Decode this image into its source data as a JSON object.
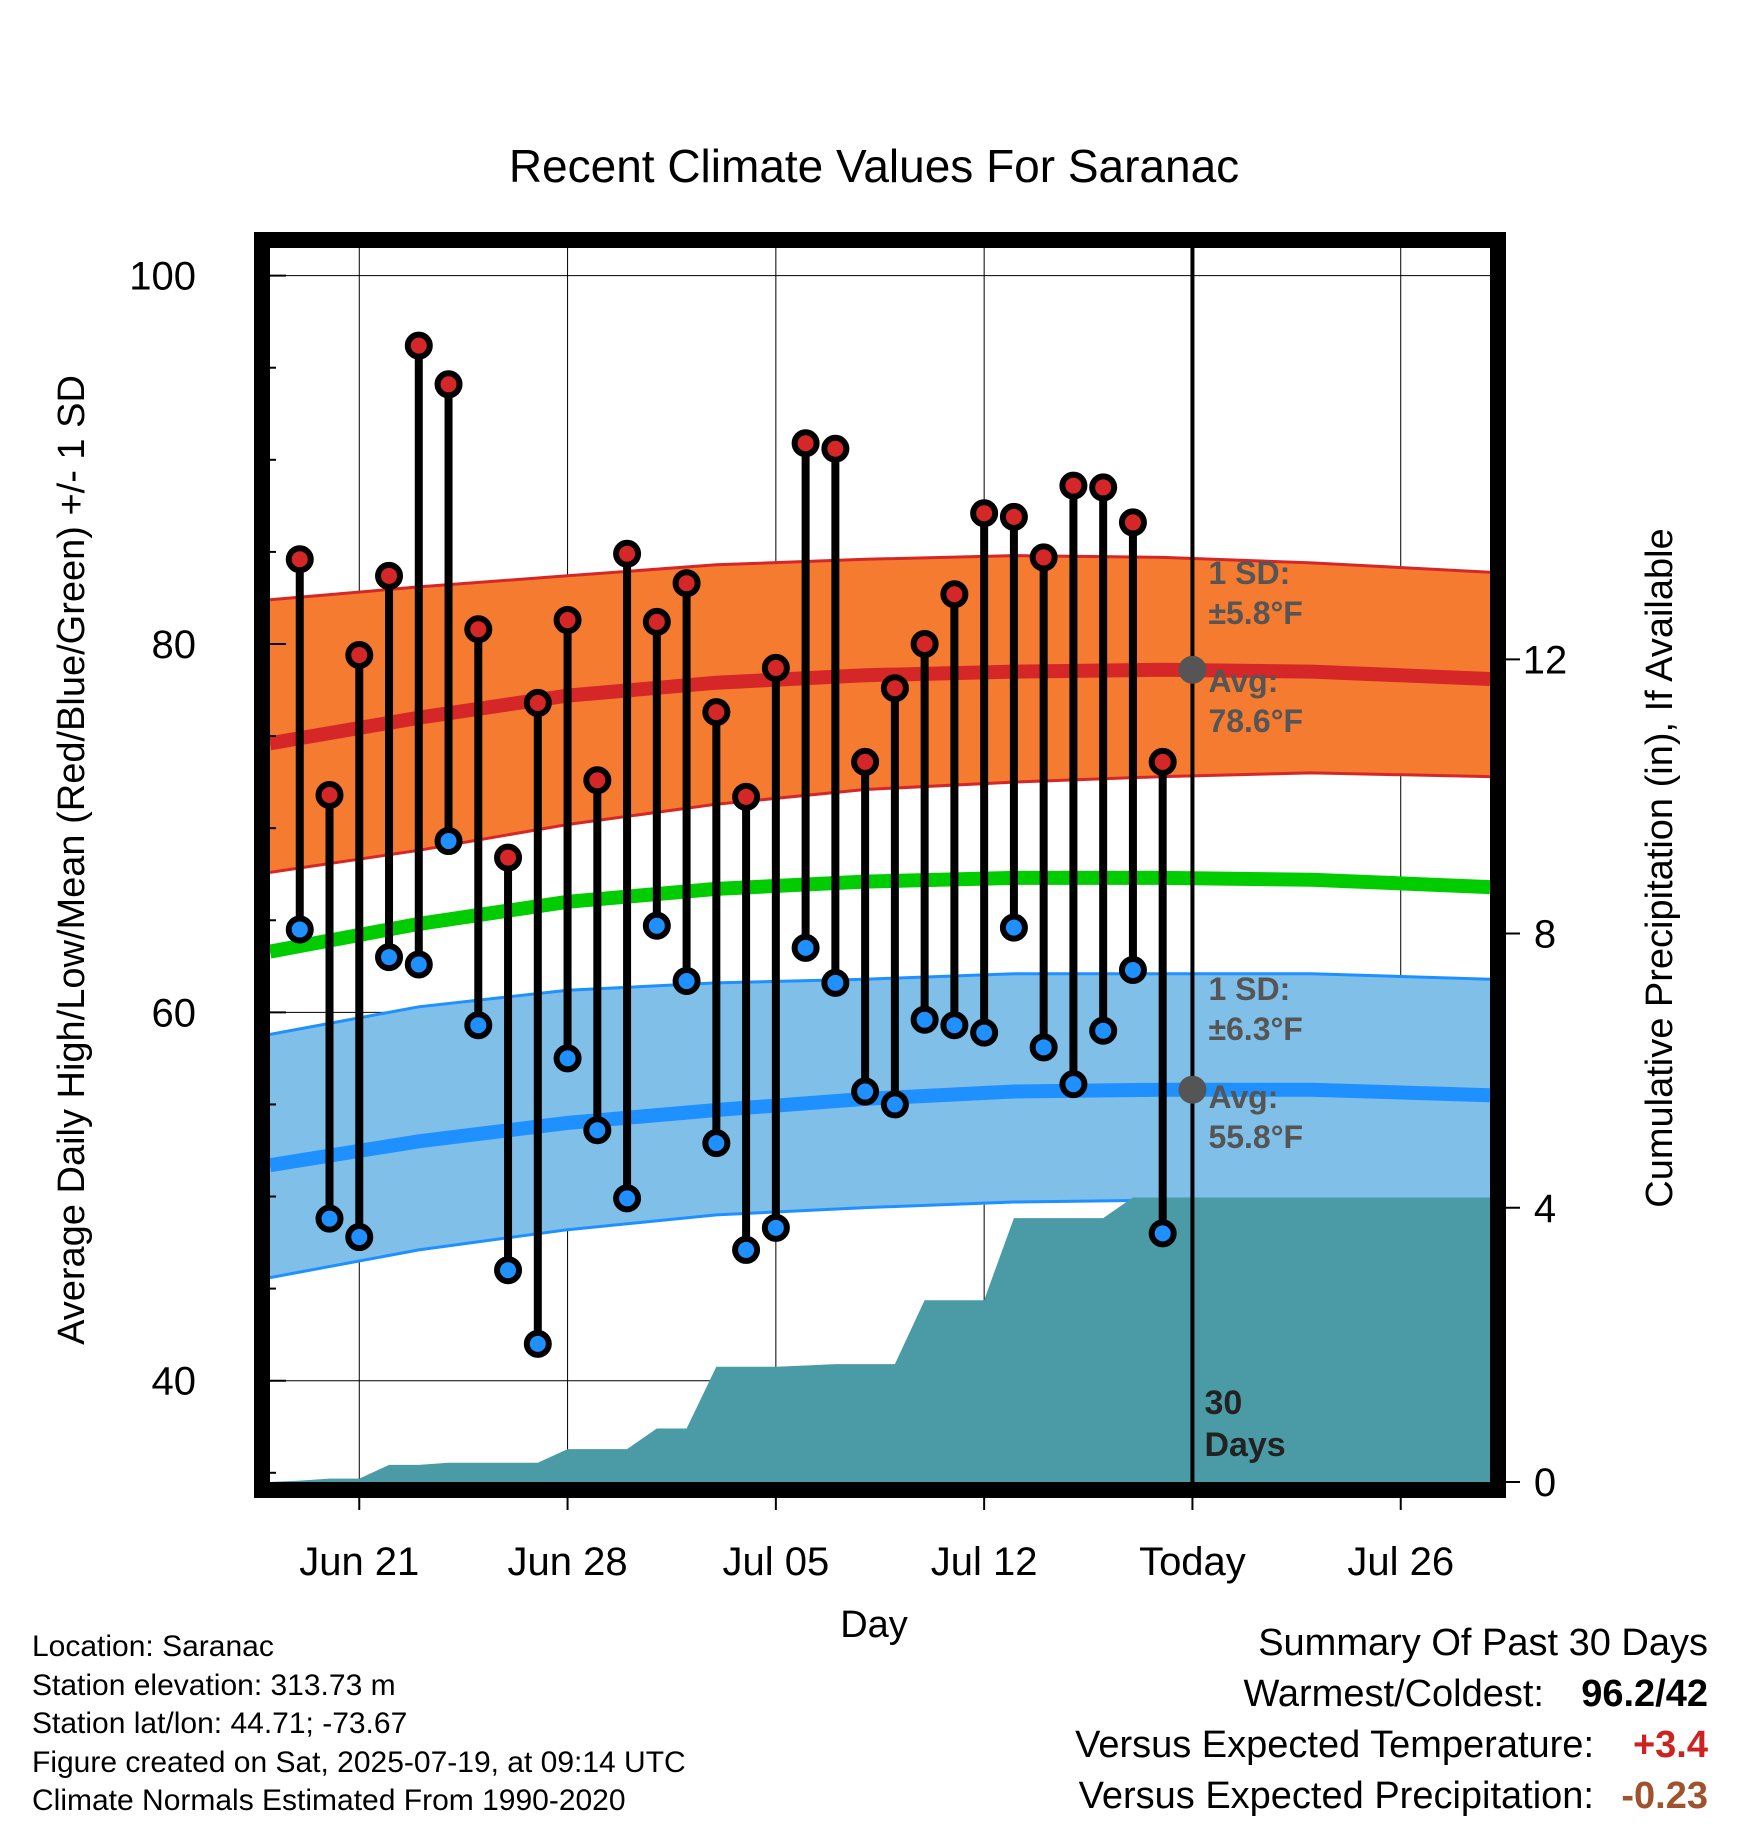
{
  "chart_data": {
    "type": "line",
    "title": "Recent Climate Values For Saranac",
    "xlabel": "Day",
    "ylabel_left": "Average Daily High/Low/Mean (Red/Blue/Green) +/- 1 SD",
    "ylabel_right": "Cumulative Precipitation (in), If Available",
    "ylim_left": [
      34.5,
      101.5
    ],
    "ylim_right": [
      0,
      18
    ],
    "yticks_left": [
      "40",
      "60",
      "80",
      "100"
    ],
    "yticks_right": [
      "0",
      "4",
      "8",
      "12"
    ],
    "xlim": [
      "2025-06-18",
      "2025-07-29"
    ],
    "xticks": [
      {
        "date": "2025-06-21",
        "label": "Jun 21"
      },
      {
        "date": "2025-06-28",
        "label": "Jun 28"
      },
      {
        "date": "2025-07-05",
        "label": "Jul 05"
      },
      {
        "date": "2025-07-12",
        "label": "Jul 12"
      },
      {
        "date": "2025-07-19",
        "label": "Today"
      },
      {
        "date": "2025-07-26",
        "label": "Jul 26"
      }
    ],
    "grid": true,
    "today": "2025-07-19",
    "today_label": [
      "30",
      "Days"
    ],
    "observed": {
      "dates": [
        "2025-06-19",
        "2025-06-20",
        "2025-06-21",
        "2025-06-22",
        "2025-06-23",
        "2025-06-24",
        "2025-06-25",
        "2025-06-26",
        "2025-06-27",
        "2025-06-28",
        "2025-06-29",
        "2025-06-30",
        "2025-07-01",
        "2025-07-02",
        "2025-07-03",
        "2025-07-04",
        "2025-07-05",
        "2025-07-06",
        "2025-07-07",
        "2025-07-08",
        "2025-07-09",
        "2025-07-10",
        "2025-07-11",
        "2025-07-12",
        "2025-07-13",
        "2025-07-14",
        "2025-07-15",
        "2025-07-16",
        "2025-07-17",
        "2025-07-18"
      ],
      "high": [
        84.6,
        71.8,
        79.4,
        83.7,
        96.2,
        94.1,
        80.8,
        68.4,
        76.8,
        81.3,
        72.6,
        84.9,
        81.2,
        83.3,
        76.3,
        71.7,
        78.7,
        90.9,
        90.6,
        73.6,
        77.6,
        80.0,
        82.7,
        87.1,
        86.9,
        84.7,
        88.6,
        88.5,
        86.6,
        73.6
      ],
      "low": [
        64.5,
        48.8,
        47.8,
        63.0,
        62.6,
        69.3,
        59.3,
        46.0,
        42.0,
        57.5,
        53.6,
        49.9,
        64.7,
        61.7,
        52.9,
        47.1,
        48.3,
        63.5,
        61.6,
        55.7,
        55.0,
        59.6,
        59.3,
        58.9,
        64.6,
        58.1,
        56.1,
        59.0,
        62.3,
        48.0
      ]
    },
    "normals": {
      "dates": [
        "2025-06-18",
        "2025-06-23",
        "2025-06-28",
        "2025-07-03",
        "2025-07-08",
        "2025-07-13",
        "2025-07-18",
        "2025-07-23",
        "2025-07-29"
      ],
      "high_mean": [
        74.6,
        76.0,
        77.2,
        77.9,
        78.3,
        78.5,
        78.6,
        78.5,
        78.1
      ],
      "high_upper": [
        82.4,
        83.1,
        83.7,
        84.3,
        84.6,
        84.8,
        84.7,
        84.4,
        83.9
      ],
      "high_lower": [
        67.6,
        68.8,
        70.2,
        71.3,
        72.1,
        72.5,
        72.8,
        73.0,
        72.8
      ],
      "mean": [
        63.3,
        64.8,
        66.0,
        66.7,
        67.1,
        67.3,
        67.3,
        67.2,
        66.8
      ],
      "low_mean": [
        51.7,
        53.0,
        54.0,
        54.7,
        55.3,
        55.7,
        55.8,
        55.8,
        55.5
      ],
      "low_upper": [
        58.8,
        60.3,
        61.2,
        61.6,
        61.8,
        62.1,
        62.1,
        62.1,
        61.8
      ],
      "low_lower": [
        45.6,
        47.1,
        48.2,
        49.0,
        49.4,
        49.7,
        49.8,
        49.8,
        49.5
      ]
    },
    "band_labels": {
      "high_sd": [
        "1 SD:",
        "±5.8°F"
      ],
      "high_avg": [
        "Avg:",
        "78.6°F"
      ],
      "low_sd": [
        "1 SD:",
        "±6.3°F"
      ],
      "low_avg": [
        "Avg:",
        "55.8°F"
      ]
    },
    "precip": {
      "dates": [
        "2025-06-18",
        "2025-06-19",
        "2025-06-20",
        "2025-06-21",
        "2025-06-22",
        "2025-06-23",
        "2025-06-24",
        "2025-06-25",
        "2025-06-26",
        "2025-06-27",
        "2025-06-28",
        "2025-06-29",
        "2025-06-30",
        "2025-07-01",
        "2025-07-02",
        "2025-07-03",
        "2025-07-04",
        "2025-07-05",
        "2025-07-06",
        "2025-07-07",
        "2025-07-08",
        "2025-07-09",
        "2025-07-10",
        "2025-07-11",
        "2025-07-12",
        "2025-07-13",
        "2025-07-14",
        "2025-07-15",
        "2025-07-16",
        "2025-07-17",
        "2025-07-18",
        "2025-07-19",
        "2025-07-29"
      ],
      "values": [
        0.0,
        0.02,
        0.05,
        0.05,
        0.25,
        0.25,
        0.28,
        0.28,
        0.28,
        0.28,
        0.48,
        0.48,
        0.48,
        0.78,
        0.78,
        1.68,
        1.68,
        1.68,
        1.7,
        1.72,
        1.72,
        1.72,
        2.65,
        2.65,
        2.65,
        3.85,
        3.85,
        3.85,
        3.85,
        4.15,
        4.15,
        4.15,
        4.15
      ]
    },
    "colors": {
      "high_band": "#f47b30",
      "high_mean": "#d62728",
      "mean": "#00cc00",
      "low_band": "#80bfe8",
      "low_mean": "#1e90ff",
      "precip": "#4a9ba5",
      "high_marker": "#d62728",
      "low_marker": "#1e90ff"
    }
  },
  "footer": {
    "location": "Location: Saranac",
    "elevation": "Station elevation: 313.73 m",
    "latlon": "Station lat/lon: 44.71; -73.67",
    "created": "Figure created on Sat, 2025-07-19, at 09:14 UTC",
    "normals": "Climate Normals Estimated From 1990-2020"
  },
  "summary": {
    "title": "Summary Of Past 30 Days",
    "warmest_coldest_label": "Warmest/Coldest:",
    "warmest": "96.2",
    "coldest": "42",
    "temp_label": "Versus Expected Temperature:",
    "temp_value": "+3.4",
    "precip_label": "Versus Expected Precipitation:",
    "precip_value": "-0.23"
  }
}
